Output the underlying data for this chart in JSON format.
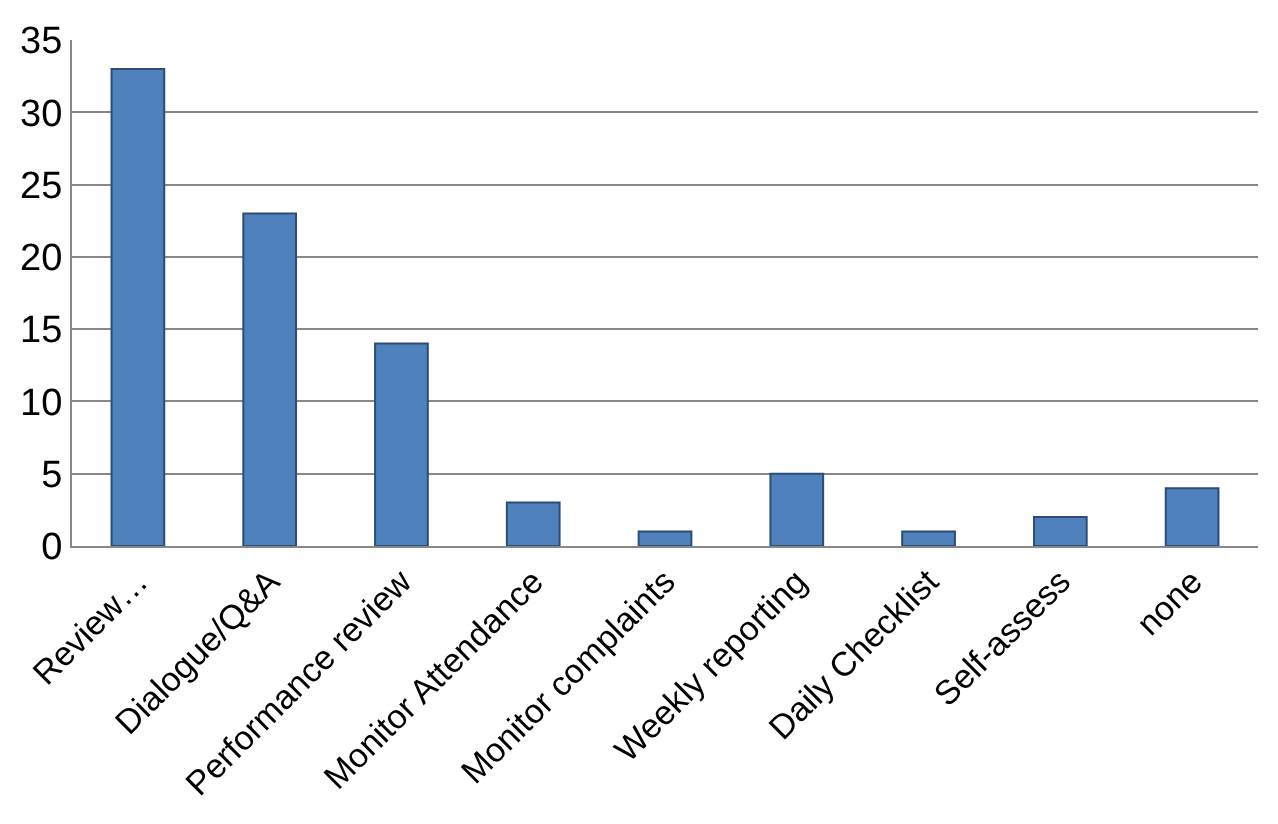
{
  "chart_data": {
    "type": "bar",
    "categories": [
      "Review…",
      "Dialogue/Q&A",
      "Performance review",
      "Monitor Attendance",
      "Monitor complaints",
      "Weekly reporting",
      "Daily Checklist",
      "Self-assess",
      "none"
    ],
    "values": [
      33,
      23,
      14,
      3,
      1,
      5,
      1,
      2,
      4
    ],
    "color": "#4f81bd",
    "ylim": [
      0,
      35
    ],
    "yticks": [
      0,
      5,
      10,
      15,
      20,
      25,
      30,
      35
    ],
    "grid": "y"
  }
}
